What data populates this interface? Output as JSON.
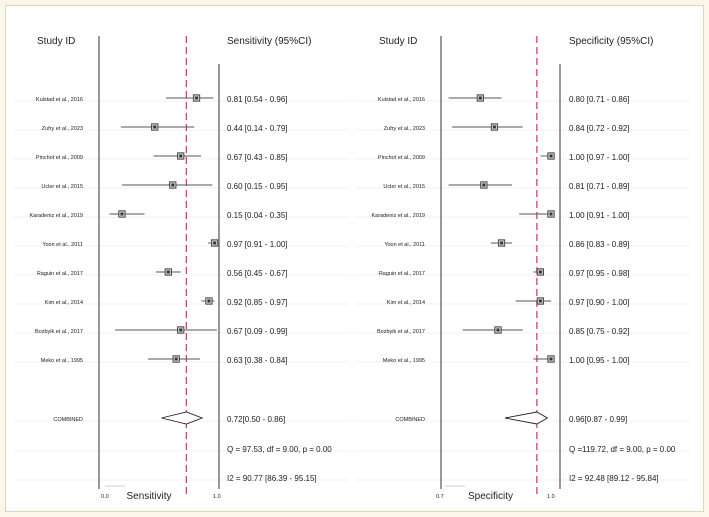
{
  "colors": {
    "background": "#fbf6e9",
    "null_line": "#e0405a",
    "axis": "#333333",
    "marker": "#333333",
    "grid": "#e6e6e6"
  },
  "chart_data": [
    {
      "type": "forest",
      "measure": "Sensitivity",
      "id_header": "Study ID",
      "value_header": "Sensitivity (95%CI)",
      "xlabel": "Sensitivity",
      "xlim": [
        0.0,
        1.0
      ],
      "tick_labels": [
        "0.0",
        "1.0"
      ],
      "reference_line": 0.72,
      "studies": [
        {
          "label": "Kulstad et al., 2016",
          "est": 0.81,
          "lo": 0.54,
          "hi": 0.96,
          "text": "0.81 [0.54 - 0.96]"
        },
        {
          "label": "Zufry et al., 2023",
          "est": 0.44,
          "lo": 0.14,
          "hi": 0.79,
          "text": "0.44 [0.14 - 0.79]"
        },
        {
          "label": "Pinchot et al., 2009",
          "est": 0.67,
          "lo": 0.43,
          "hi": 0.85,
          "text": "0.67 [0.43 - 0.85]"
        },
        {
          "label": "Ucler et al., 2015",
          "est": 0.6,
          "lo": 0.15,
          "hi": 0.95,
          "text": "0.60 [0.15 - 0.95]"
        },
        {
          "label": "Karadeniz et al., 2019",
          "est": 0.15,
          "lo": 0.04,
          "hi": 0.35,
          "text": "0.15 [0.04 - 0.35]"
        },
        {
          "label": "Yoon et al., 2011",
          "est": 0.97,
          "lo": 0.91,
          "hi": 1.0,
          "text": "0.97 [0.91 - 1.00]"
        },
        {
          "label": "Raguin et al., 2017",
          "est": 0.56,
          "lo": 0.45,
          "hi": 0.67,
          "text": "0.56 [0.45 - 0.67]"
        },
        {
          "label": "Kim et al., 2014",
          "est": 0.92,
          "lo": 0.85,
          "hi": 0.97,
          "text": "0.92 [0.85 - 0.97]"
        },
        {
          "label": "Bozbyik et al., 2017",
          "est": 0.67,
          "lo": 0.09,
          "hi": 0.99,
          "text": "0.67 [0.09 - 0.99]"
        },
        {
          "label": "Meko et al., 1995",
          "est": 0.63,
          "lo": 0.38,
          "hi": 0.84,
          "text": "0.63 [0.38 - 0.84]"
        }
      ],
      "combined": {
        "label": "COMBINED",
        "est": 0.72,
        "lo": 0.5,
        "hi": 0.86,
        "text": "0.72[0.50 - 0.86]"
      },
      "q_text": "Q = 97.53, df = 9.00, p = 0.00",
      "i2_text": "I2 = 90.77 [86.39 - 95.15]"
    },
    {
      "type": "forest",
      "measure": "Specificity",
      "id_header": "Study ID",
      "value_header": "Specificity (95%CI)",
      "xlabel": "Specificity",
      "xlim": [
        0.7,
        1.0
      ],
      "tick_labels": [
        "0.7",
        "1.0"
      ],
      "reference_line": 0.96,
      "studies": [
        {
          "label": "Kulstad et al., 2016",
          "est": 0.8,
          "lo": 0.71,
          "hi": 0.86,
          "text": "0.80 [0.71 - 0.86]"
        },
        {
          "label": "Zufry et al., 2023",
          "est": 0.84,
          "lo": 0.72,
          "hi": 0.92,
          "text": "0.84 [0.72 - 0.92]"
        },
        {
          "label": "Pinchot et al., 2009",
          "est": 1.0,
          "lo": 0.97,
          "hi": 1.0,
          "text": "1.00 [0.97 - 1.00]"
        },
        {
          "label": "Ucler et al., 2015",
          "est": 0.81,
          "lo": 0.71,
          "hi": 0.89,
          "text": "0.81 [0.71 - 0.89]"
        },
        {
          "label": "Karadeniz et al., 2019",
          "est": 1.0,
          "lo": 0.91,
          "hi": 1.0,
          "text": "1.00 [0.91 - 1.00]"
        },
        {
          "label": "Yoon et al., 2011",
          "est": 0.86,
          "lo": 0.83,
          "hi": 0.89,
          "text": "0.86 [0.83 - 0.89]"
        },
        {
          "label": "Raguin et al., 2017",
          "est": 0.97,
          "lo": 0.95,
          "hi": 0.98,
          "text": "0.97 [0.95 - 0.98]"
        },
        {
          "label": "Kim et al., 2014",
          "est": 0.97,
          "lo": 0.9,
          "hi": 1.0,
          "text": "0.97 [0.90 - 1.00]"
        },
        {
          "label": "Bozbyik et al., 2017",
          "est": 0.85,
          "lo": 0.75,
          "hi": 0.92,
          "text": "0.85 [0.75 - 0.92]"
        },
        {
          "label": "Meko et al., 1995",
          "est": 1.0,
          "lo": 0.95,
          "hi": 1.0,
          "text": "1.00 [0.95 - 1.00]"
        }
      ],
      "combined": {
        "label": "COMBINED",
        "est": 0.96,
        "lo": 0.87,
        "hi": 0.99,
        "text": "0.96[0.87 - 0.99]"
      },
      "q_text": "Q =119.72, df = 9.00, p = 0.00",
      "i2_text": "I2 = 92.48 [89.12 - 95.84]"
    }
  ]
}
